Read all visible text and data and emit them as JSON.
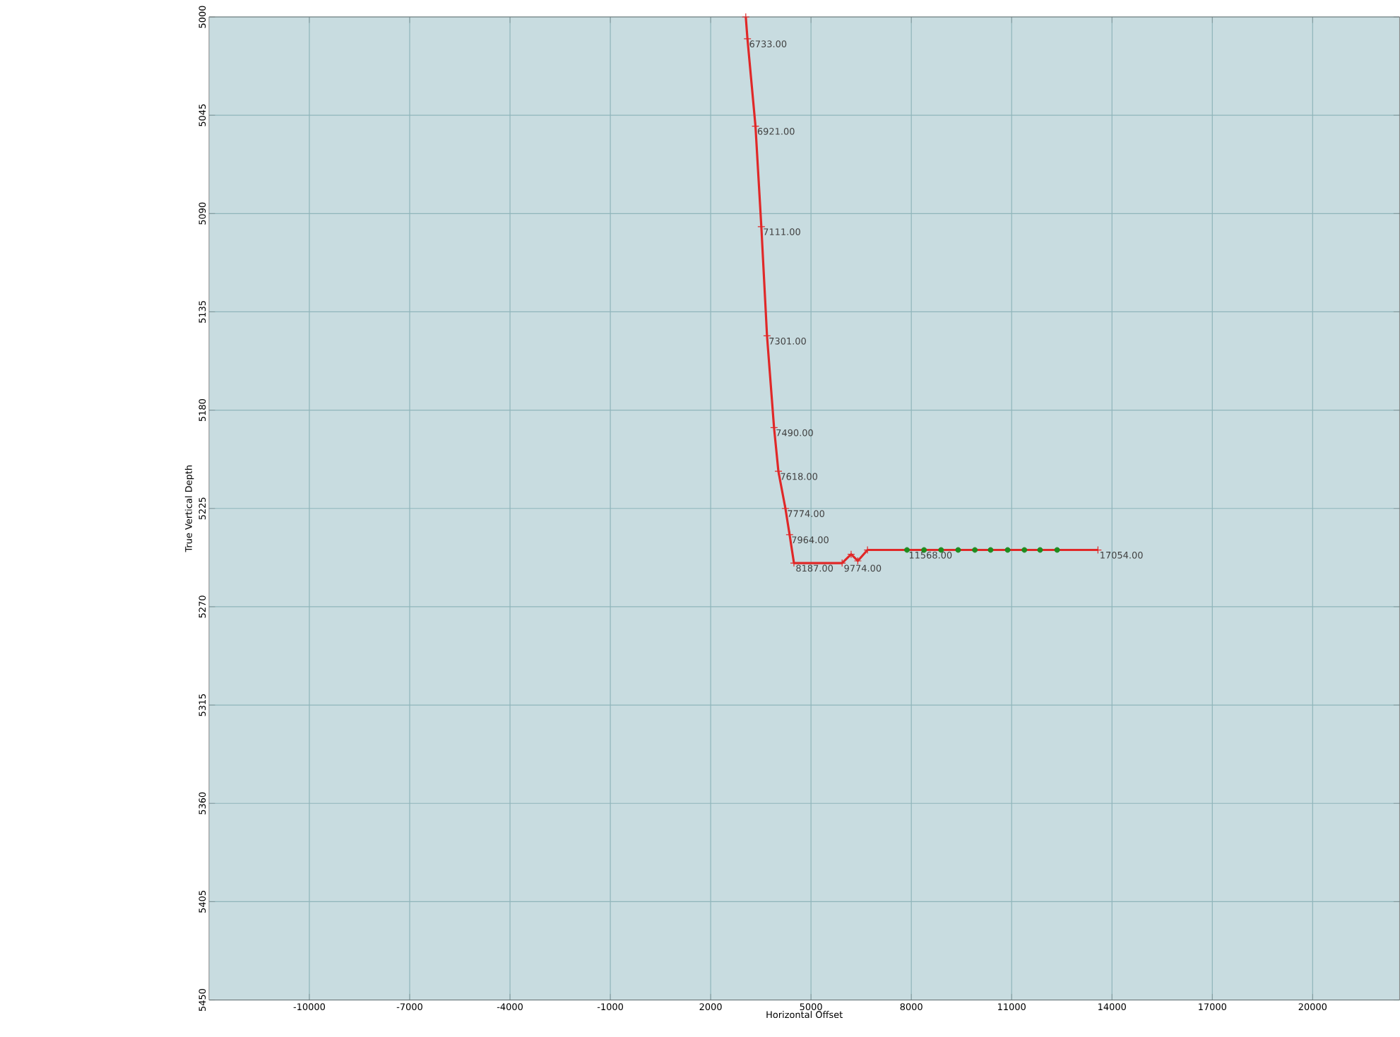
{
  "chart_data": {
    "type": "line",
    "xlabel": "Horizontal Offset",
    "ylabel": "True Vertical Depth",
    "xlim": [
      -13000,
      22600
    ],
    "ylim": [
      5450,
      5000
    ],
    "xticks": [
      -10000,
      -7000,
      -4000,
      -1000,
      2000,
      5000,
      8000,
      11000,
      14000,
      17000,
      20000
    ],
    "yticks": [
      5000,
      5045,
      5090,
      5135,
      5180,
      5225,
      5270,
      5315,
      5360,
      5405,
      5450
    ],
    "grid": true,
    "series": [
      {
        "color": "#e02828",
        "marker": "cross",
        "x": [
          3050,
          3100,
          3340,
          3515,
          3685,
          3895,
          4025,
          4235,
          4360,
          4490,
          5930,
          6200,
          6400,
          6690,
          13580
        ],
        "values": [
          5000,
          5010,
          5050,
          5096,
          5146,
          5188,
          5208,
          5225,
          5237,
          5250,
          5250,
          5246,
          5249,
          5244,
          5244
        ]
      },
      {
        "type": "scatter",
        "color": "#1e8c1e",
        "marker": "circle",
        "x": [
          7870,
          8380,
          8890,
          9400,
          9900,
          10370,
          10880,
          11380,
          11850,
          12360
        ],
        "values": [
          5244,
          5244,
          5244,
          5244,
          5244,
          5244,
          5244,
          5244,
          5244,
          5244
        ]
      }
    ],
    "annotations": [
      {
        "text": "6733.00",
        "x": 3100,
        "y": 5010
      },
      {
        "text": "6921.00",
        "x": 3340,
        "y": 5050
      },
      {
        "text": "7111.00",
        "x": 3515,
        "y": 5096
      },
      {
        "text": "7301.00",
        "x": 3685,
        "y": 5146
      },
      {
        "text": "7490.00",
        "x": 3895,
        "y": 5188
      },
      {
        "text": "7618.00",
        "x": 4025,
        "y": 5208
      },
      {
        "text": "7774.00",
        "x": 4235,
        "y": 5225
      },
      {
        "text": "7964.00",
        "x": 4360,
        "y": 5237
      },
      {
        "text": "8187.00",
        "x": 4490,
        "y": 5250
      },
      {
        "text": "9774.00",
        "x": 5930,
        "y": 5250
      },
      {
        "text": "11568.00",
        "x": 7870,
        "y": 5244
      },
      {
        "text": "17054.00",
        "x": 13580,
        "y": 5244
      }
    ]
  }
}
